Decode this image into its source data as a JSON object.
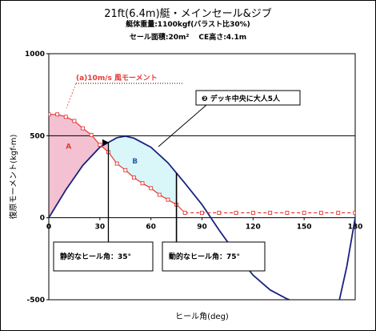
{
  "titles": {
    "main": "21ft(6.4m)艇・メインセール&ジブ",
    "line2": "艇体重量:1100kgf(バラスト比30%)",
    "line3": "セール面積:20m²　 CE高さ:4.1m"
  },
  "chart_data": {
    "type": "line",
    "xlabel": "ヒール角(deg)",
    "ylabel": "復原モーメント(kgf-m)",
    "xlim": [
      0,
      180
    ],
    "ylim": [
      -500,
      1000
    ],
    "x_ticks": [
      0,
      30,
      60,
      90,
      120,
      150,
      180
    ],
    "y_ticks": [
      -500,
      0,
      500,
      1000
    ],
    "series": [
      {
        "name": "righting-moment",
        "color": "#1a237e",
        "x": [
          0,
          10,
          20,
          30,
          40,
          45,
          50,
          60,
          70,
          80,
          90,
          100,
          110,
          120,
          130,
          140,
          150,
          160,
          165,
          170,
          175,
          180
        ],
        "y": [
          0,
          170,
          320,
          430,
          488,
          497,
          485,
          430,
          335,
          210,
          80,
          -75,
          -220,
          -350,
          -440,
          -495,
          -530,
          -545,
          -545,
          -535,
          -300,
          0
        ]
      },
      {
        "name": "wind-heeling-moment",
        "color": "#e53935",
        "x": [
          0,
          5,
          10,
          15,
          20,
          25,
          30,
          35,
          40,
          45,
          50,
          55,
          60,
          65,
          70,
          75,
          80,
          90,
          100,
          110,
          120,
          130,
          140,
          150,
          160,
          170,
          180
        ],
        "y": [
          630,
          630,
          615,
          590,
          545,
          505,
          445,
          400,
          330,
          290,
          245,
          210,
          180,
          140,
          110,
          80,
          30,
          30,
          30,
          30,
          30,
          30,
          30,
          30,
          30,
          30,
          30
        ]
      }
    ],
    "reference_line": {
      "y": 500
    },
    "areas": [
      {
        "label": "A",
        "color": "#f3c1d2"
      },
      {
        "label": "B",
        "color": "#d9f6f8"
      }
    ],
    "annotations": {
      "wind_label": "(a)10m/s 風モーメント",
      "deck_label": "❷ デッキ中央に大人5人",
      "static_heel_label": "静的なヒール角：35°",
      "static_heel_deg": 35,
      "dynamic_heel_label": "動的なヒール角：75°",
      "dynamic_heel_deg": 75
    }
  }
}
